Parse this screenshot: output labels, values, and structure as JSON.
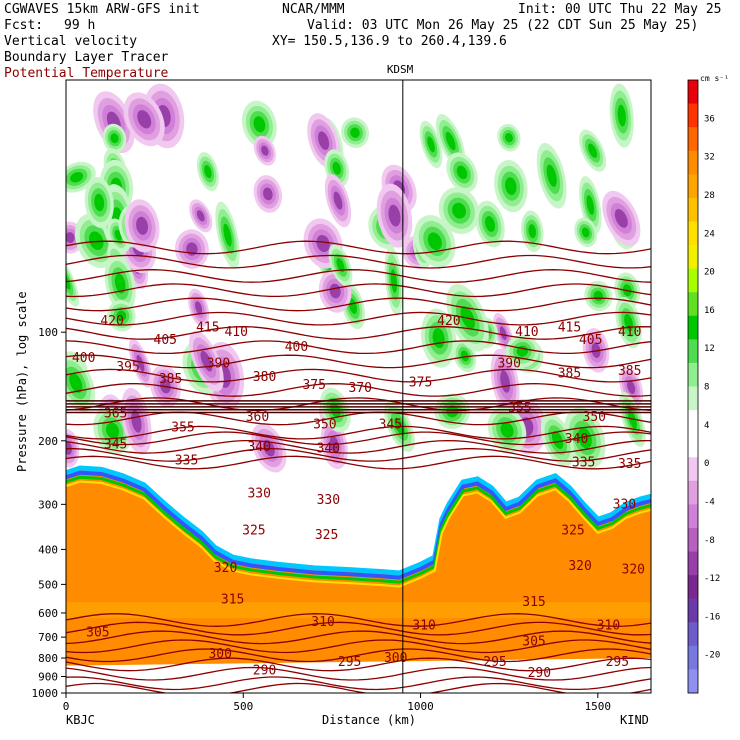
{
  "header": {
    "model": "CGWAVES 15km ARW-GFS init",
    "center": "NCAR/MMM",
    "init": "Init: 00 UTC Thu 22 May 25",
    "fcst_label": "Fcst:",
    "fcst_value": "99 h",
    "valid": "Valid: 03 UTC Mon 26 May 25 (22 CDT Sun 25 May 25)",
    "xy": "XY= 150.5,136.9 to 260.4,139.6",
    "field1": "Vertical velocity",
    "field2": "Boundary Layer Tracer",
    "field3": "Potential Temperature"
  },
  "chart_data": {
    "type": "heatmap",
    "marker_label": "KDSM",
    "marker_x_km": 950,
    "xlabel": "Distance (km)",
    "ylabel": "Pressure (hPa), log scale",
    "xlim": [
      0,
      1650
    ],
    "x_ticks": [
      0,
      500,
      1000,
      1500
    ],
    "x_tick_labels": [
      "0",
      "500",
      "1000",
      "1500"
    ],
    "left_end_label": "KBJC",
    "right_end_label": "KIND",
    "y_scale": "log",
    "ylim": [
      1000,
      20
    ],
    "y_ticks": [
      100,
      200,
      300,
      400,
      500,
      600,
      700,
      800,
      900,
      1000
    ],
    "y_tick_labels": [
      "100",
      "200",
      "300",
      "400",
      "500",
      "600",
      "700",
      "800",
      "900",
      "1000"
    ],
    "colorbar": {
      "unit": "cm s⁻¹",
      "labels": [
        "36",
        "32",
        "28",
        "24",
        "20",
        "16",
        "12",
        "8",
        "4",
        "0",
        "-4",
        "-8",
        "-12",
        "-16",
        "-20"
      ],
      "colors": [
        "#e8000b",
        "#ff3300",
        "#ff6600",
        "#ff8c00",
        "#ffa500",
        "#ffc000",
        "#ffe000",
        "#f0f000",
        "#a8ff00",
        "#60e020",
        "#00c800",
        "#50dc50",
        "#90ee90",
        "#c8f5c8",
        "#ffffff",
        "#ffffff",
        "#f0c8f0",
        "#e0a0e0",
        "#d080d8",
        "#b860c0",
        "#9840a8",
        "#7a2890",
        "#6a3aa8",
        "#6f5ccc",
        "#7878e0",
        "#9090f0"
      ]
    },
    "contour_labels": [
      {
        "text": "420",
        "x": 130,
        "p": 93
      },
      {
        "text": "415",
        "x": 400,
        "p": 97
      },
      {
        "text": "410",
        "x": 480,
        "p": 100
      },
      {
        "text": "405",
        "x": 280,
        "p": 105
      },
      {
        "text": "400",
        "x": 50,
        "p": 118
      },
      {
        "text": "400",
        "x": 650,
        "p": 110
      },
      {
        "text": "395",
        "x": 175,
        "p": 125
      },
      {
        "text": "390",
        "x": 430,
        "p": 122
      },
      {
        "text": "385",
        "x": 295,
        "p": 135
      },
      {
        "text": "380",
        "x": 560,
        "p": 133
      },
      {
        "text": "375",
        "x": 700,
        "p": 140
      },
      {
        "text": "370",
        "x": 830,
        "p": 143
      },
      {
        "text": "365",
        "x": 140,
        "p": 168
      },
      {
        "text": "360",
        "x": 540,
        "p": 172
      },
      {
        "text": "355",
        "x": 330,
        "p": 184
      },
      {
        "text": "350",
        "x": 730,
        "p": 180
      },
      {
        "text": "345",
        "x": 140,
        "p": 205
      },
      {
        "text": "345",
        "x": 915,
        "p": 180
      },
      {
        "text": "340",
        "x": 545,
        "p": 208
      },
      {
        "text": "340",
        "x": 740,
        "p": 210
      },
      {
        "text": "335",
        "x": 340,
        "p": 227
      },
      {
        "text": "330",
        "x": 545,
        "p": 280
      },
      {
        "text": "330",
        "x": 740,
        "p": 292
      },
      {
        "text": "325",
        "x": 530,
        "p": 355
      },
      {
        "text": "325",
        "x": 735,
        "p": 365
      },
      {
        "text": "320",
        "x": 450,
        "p": 450
      },
      {
        "text": "315",
        "x": 470,
        "p": 550
      },
      {
        "text": "310",
        "x": 725,
        "p": 635
      },
      {
        "text": "310",
        "x": 1010,
        "p": 650
      },
      {
        "text": "305",
        "x": 90,
        "p": 680
      },
      {
        "text": "300",
        "x": 435,
        "p": 780
      },
      {
        "text": "300",
        "x": 930,
        "p": 800
      },
      {
        "text": "295",
        "x": 800,
        "p": 820
      },
      {
        "text": "290",
        "x": 560,
        "p": 865
      },
      {
        "text": "375",
        "x": 1000,
        "p": 138
      },
      {
        "text": "420",
        "x": 1080,
        "p": 93
      },
      {
        "text": "415",
        "x": 1420,
        "p": 97
      },
      {
        "text": "410",
        "x": 1300,
        "p": 100
      },
      {
        "text": "410",
        "x": 1590,
        "p": 100
      },
      {
        "text": "405",
        "x": 1480,
        "p": 105
      },
      {
        "text": "390",
        "x": 1250,
        "p": 122
      },
      {
        "text": "385",
        "x": 1420,
        "p": 130
      },
      {
        "text": "385",
        "x": 1590,
        "p": 128
      },
      {
        "text": "355",
        "x": 1280,
        "p": 162
      },
      {
        "text": "350",
        "x": 1490,
        "p": 172
      },
      {
        "text": "340",
        "x": 1440,
        "p": 198
      },
      {
        "text": "335",
        "x": 1460,
        "p": 230
      },
      {
        "text": "335",
        "x": 1590,
        "p": 232
      },
      {
        "text": "330",
        "x": 1575,
        "p": 300
      },
      {
        "text": "325",
        "x": 1430,
        "p": 355
      },
      {
        "text": "320",
        "x": 1450,
        "p": 445
      },
      {
        "text": "320",
        "x": 1600,
        "p": 455
      },
      {
        "text": "315",
        "x": 1320,
        "p": 560
      },
      {
        "text": "310",
        "x": 1530,
        "p": 650
      },
      {
        "text": "305",
        "x": 1320,
        "p": 720
      },
      {
        "text": "295",
        "x": 1210,
        "p": 820
      },
      {
        "text": "295",
        "x": 1555,
        "p": 820
      },
      {
        "text": "290",
        "x": 1335,
        "p": 880
      }
    ]
  }
}
